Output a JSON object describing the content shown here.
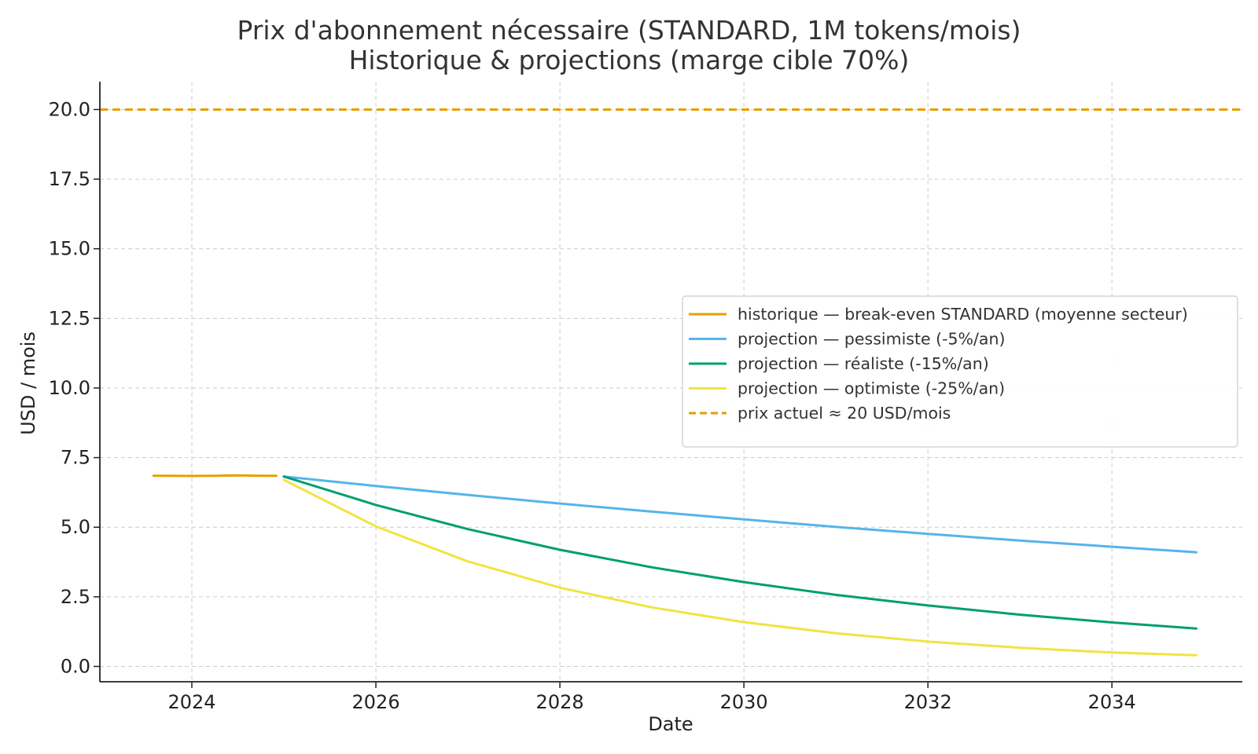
{
  "chart_data": {
    "type": "line",
    "title": "Prix d'abonnement nécessaire (STANDARD, 1M tokens/mois)",
    "subtitle": "Historique & projections (marge cible 70%)",
    "xlabel": "Date",
    "ylabel": "USD / mois",
    "xlim": [
      "2023-01",
      "2035-06"
    ],
    "ylim": [
      -0.55,
      21.0
    ],
    "x_ticks": [
      "2024",
      "2026",
      "2028",
      "2030",
      "2032",
      "2034"
    ],
    "y_ticks": [
      "0.0",
      "2.5",
      "5.0",
      "7.5",
      "10.0",
      "12.5",
      "15.0",
      "17.5",
      "20.0"
    ],
    "grid": true,
    "legend_position": "center-right",
    "series": [
      {
        "name": "historique — break-even STANDARD (moyenne secteur)",
        "color": "#E69F00",
        "style": "solid",
        "points": [
          [
            "2023-08",
            6.85
          ],
          [
            "2023-10",
            6.85
          ],
          [
            "2024-01",
            6.84
          ],
          [
            "2024-04",
            6.85
          ],
          [
            "2024-07",
            6.86
          ],
          [
            "2024-10",
            6.85
          ],
          [
            "2024-12",
            6.85
          ]
        ]
      },
      {
        "name": "projection — pessimiste (-5%/an)",
        "color": "#56B4E9",
        "style": "solid",
        "points": [
          [
            "2025-01",
            6.82
          ],
          [
            "2026-01",
            6.48
          ],
          [
            "2027-01",
            6.16
          ],
          [
            "2028-01",
            5.85
          ],
          [
            "2029-01",
            5.56
          ],
          [
            "2030-01",
            5.28
          ],
          [
            "2031-01",
            5.01
          ],
          [
            "2032-01",
            4.76
          ],
          [
            "2033-01",
            4.52
          ],
          [
            "2034-01",
            4.3
          ],
          [
            "2034-12",
            4.1
          ]
        ]
      },
      {
        "name": "projection — réaliste (-15%/an)",
        "color": "#009E73",
        "style": "solid",
        "points": [
          [
            "2025-01",
            6.82
          ],
          [
            "2026-01",
            5.8
          ],
          [
            "2027-01",
            4.93
          ],
          [
            "2028-01",
            4.19
          ],
          [
            "2029-01",
            3.56
          ],
          [
            "2030-01",
            3.03
          ],
          [
            "2031-01",
            2.57
          ],
          [
            "2032-01",
            2.19
          ],
          [
            "2033-01",
            1.86
          ],
          [
            "2034-01",
            1.58
          ],
          [
            "2034-12",
            1.36
          ]
        ]
      },
      {
        "name": "projection — optimiste (-25%/an)",
        "color": "#F0E442",
        "style": "solid",
        "points": [
          [
            "2025-01",
            6.7
          ],
          [
            "2026-01",
            5.03
          ],
          [
            "2027-01",
            3.77
          ],
          [
            "2028-01",
            2.83
          ],
          [
            "2029-01",
            2.12
          ],
          [
            "2030-01",
            1.59
          ],
          [
            "2031-01",
            1.19
          ],
          [
            "2032-01",
            0.89
          ],
          [
            "2033-01",
            0.67
          ],
          [
            "2034-01",
            0.5
          ],
          [
            "2034-12",
            0.4
          ]
        ]
      },
      {
        "name": "prix actuel ≈ 20 USD/mois",
        "color": "#E69F00",
        "style": "dashed",
        "value": 20.0
      }
    ]
  }
}
